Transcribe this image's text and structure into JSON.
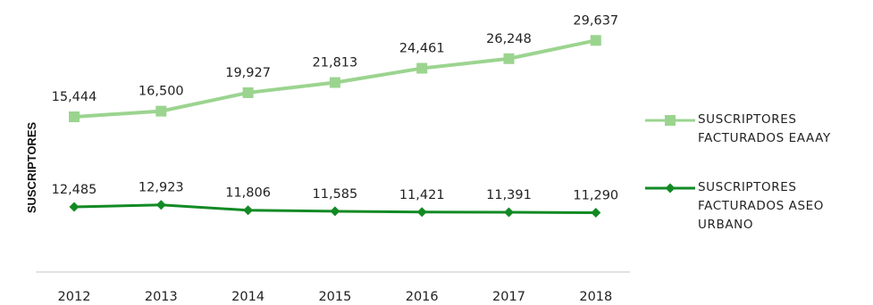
{
  "chart_data": {
    "type": "line",
    "categories": [
      "2012",
      "2013",
      "2014",
      "2015",
      "2016",
      "2017",
      "2018"
    ],
    "ylabel": "SUSCRIPTORES",
    "grid": false,
    "legend_position": "right",
    "series": [
      {
        "name": "SUSCRIPTORES FACTURADOS EAAAY",
        "legend_lines": [
          "SUSCRIPTORES",
          "FACTURADOS EAAAY"
        ],
        "color": "#9bd48f",
        "marker": "square",
        "values": [
          15444,
          16500,
          19927,
          21813,
          24461,
          26248,
          29637
        ],
        "labels": [
          "15,444",
          "16,500",
          "19,927",
          "21,813",
          "24,461",
          "26,248",
          "29,637"
        ]
      },
      {
        "name": "SUSCRIPTORES FACTURADOS ASEO URBANO",
        "legend_lines": [
          "SUSCRIPTORES",
          "FACTURADOS ASEO",
          "URBANO"
        ],
        "color": "#128a24",
        "marker": "diamond",
        "values": [
          12485,
          12923,
          11806,
          11585,
          11421,
          11391,
          11290
        ],
        "labels": [
          "12,485",
          "12,923",
          "11,806",
          "11,585",
          "11,421",
          "11,391",
          "11,290"
        ]
      }
    ]
  }
}
